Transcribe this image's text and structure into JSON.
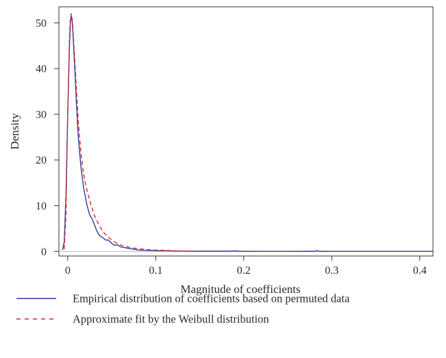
{
  "colors": {
    "empirical": "#2b3a9a",
    "weibull": "#e0262b",
    "baseline": "#bcbcbc",
    "axis": "#333333"
  },
  "chart_data": {
    "type": "line",
    "xlabel": "Magnitude of coefficients",
    "ylabel": "Density",
    "xlim": [
      -0.01,
      0.415
    ],
    "ylim": [
      -1,
      53.5
    ],
    "xticks": [
      0,
      0.1,
      0.2,
      0.3,
      0.4
    ],
    "xtick_labels": [
      "0",
      "0.1",
      "0.2",
      "0.3",
      "0.4"
    ],
    "yticks": [
      0,
      10,
      20,
      30,
      40,
      50
    ],
    "ytick_labels": [
      "0",
      "10",
      "20",
      "30",
      "40",
      "50"
    ],
    "grid": false,
    "baseline_y": 0,
    "legend_position": "bottom",
    "series": [
      {
        "name": "Empirical distribution of coefficients based on permuted data",
        "style": "solid",
        "x": [
          -0.006,
          -0.004,
          -0.002,
          0.0,
          0.002,
          0.003,
          0.004,
          0.005,
          0.006,
          0.008,
          0.01,
          0.012,
          0.015,
          0.018,
          0.02,
          0.022,
          0.025,
          0.028,
          0.03,
          0.033,
          0.036,
          0.04,
          0.043,
          0.046,
          0.05,
          0.053,
          0.056,
          0.06,
          0.063,
          0.066,
          0.07,
          0.075,
          0.08,
          0.09,
          0.1,
          0.11,
          0.12,
          0.13,
          0.14,
          0.16,
          0.18,
          0.19,
          0.195,
          0.2,
          0.25,
          0.28,
          0.283,
          0.286,
          0.3,
          0.35,
          0.415
        ],
        "y": [
          0.3,
          2.0,
          12.0,
          30.0,
          45.0,
          50.0,
          51.5,
          50.5,
          47.5,
          40.0,
          32.0,
          25.0,
          18.5,
          14.0,
          12.0,
          10.0,
          8.0,
          7.0,
          6.0,
          4.5,
          3.5,
          3.0,
          2.5,
          2.5,
          1.8,
          1.3,
          1.5,
          1.0,
          0.9,
          0.8,
          0.6,
          0.5,
          0.3,
          0.25,
          0.2,
          0.15,
          0.1,
          0.08,
          0.05,
          0.05,
          0.05,
          0.12,
          0.05,
          0.03,
          0.02,
          0.03,
          0.18,
          0.03,
          0.02,
          0.02,
          0.02
        ]
      },
      {
        "name": "Approximate fit by the Weibull distribution",
        "style": "dashed",
        "x": [
          -0.004,
          -0.002,
          0.0,
          0.002,
          0.003,
          0.004,
          0.005,
          0.006,
          0.008,
          0.01,
          0.012,
          0.015,
          0.018,
          0.02,
          0.023,
          0.026,
          0.03,
          0.035,
          0.04,
          0.045,
          0.05,
          0.055,
          0.06,
          0.07,
          0.08,
          0.09,
          0.1,
          0.11,
          0.12,
          0.13,
          0.14,
          0.15
        ],
        "y": [
          0.5,
          8.0,
          30.0,
          47.0,
          51.0,
          52.0,
          51.0,
          48.5,
          42.0,
          35.0,
          28.5,
          21.5,
          17.0,
          15.0,
          12.5,
          10.5,
          8.0,
          6.0,
          4.3,
          3.3,
          2.5,
          1.9,
          1.4,
          0.9,
          0.6,
          0.4,
          0.3,
          0.22,
          0.15,
          0.1,
          0.07,
          0.05
        ]
      }
    ]
  }
}
